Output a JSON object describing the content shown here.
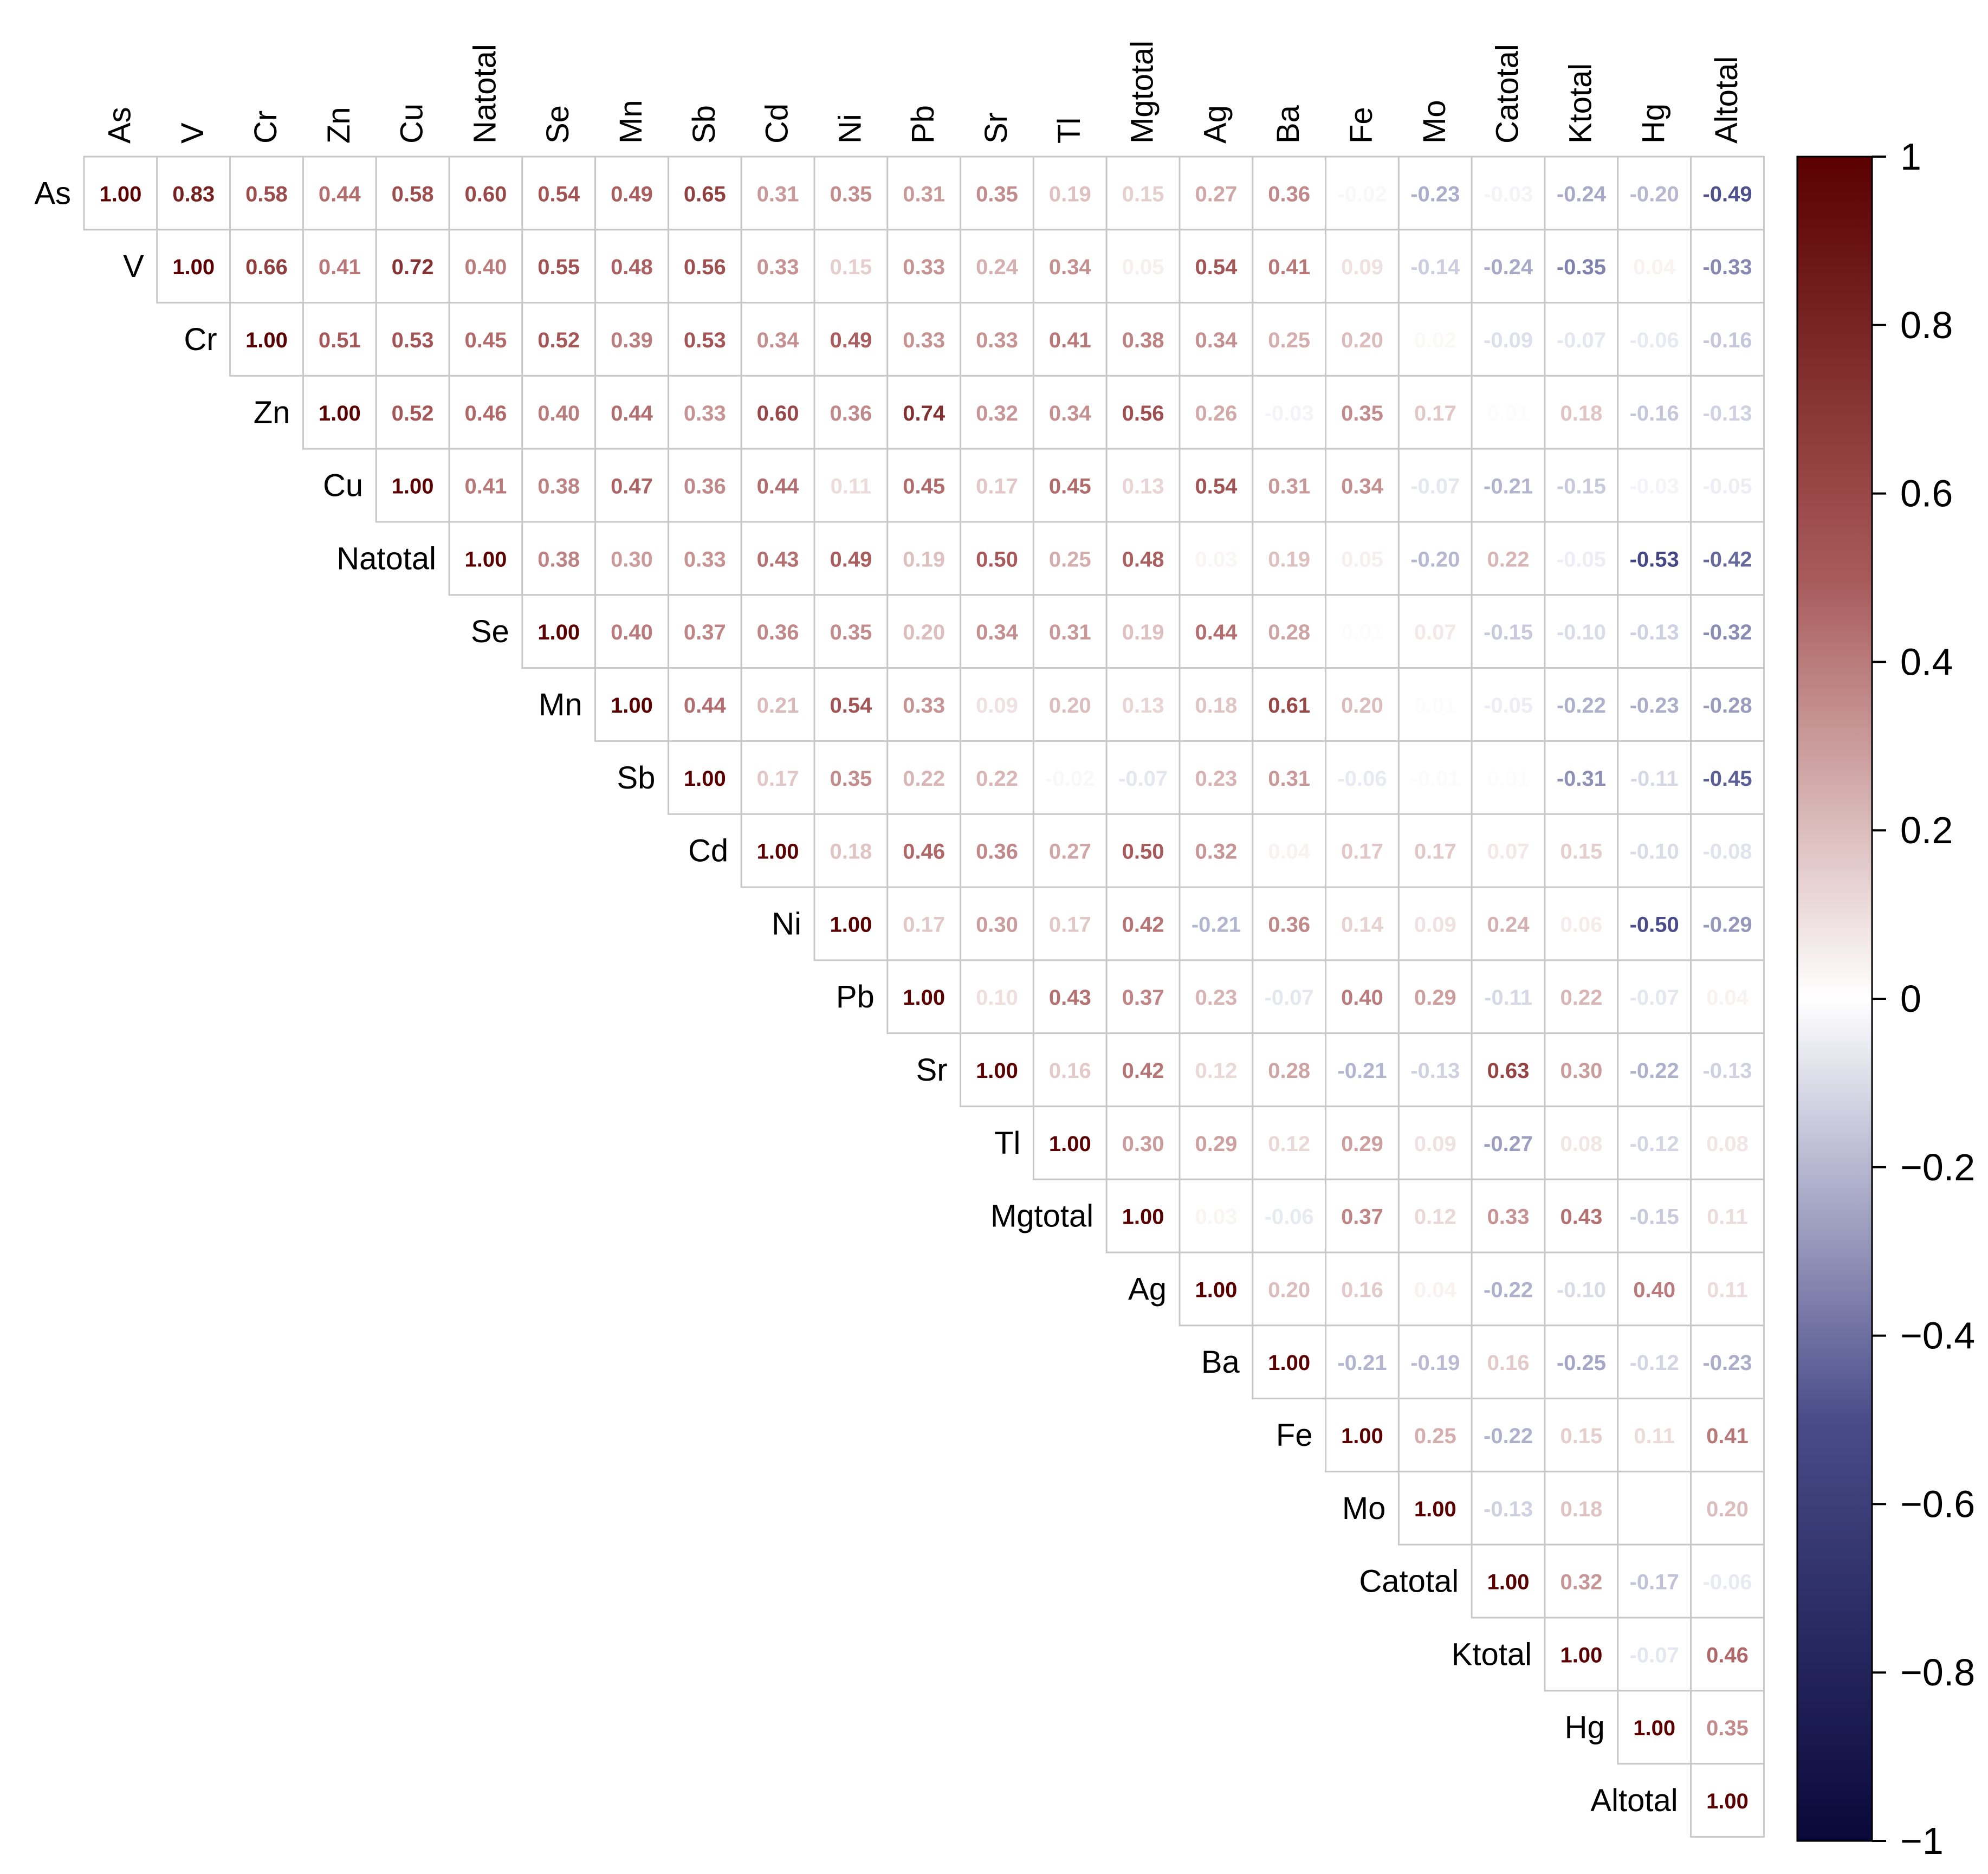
{
  "chart_data": {
    "type": "heatmap",
    "variables": [
      "As",
      "V",
      "Cr",
      "Zn",
      "Cu",
      "Natotal",
      "Se",
      "Mn",
      "Sb",
      "Cd",
      "Ni",
      "Pb",
      "Sr",
      "Tl",
      "Mgtotal",
      "Ag",
      "Ba",
      "Fe",
      "Mo",
      "Catotal",
      "Ktotal",
      "Hg",
      "Altotal"
    ],
    "matrix_upper": [
      [
        "1.00",
        "0.83",
        "0.58",
        "0.44",
        "0.58",
        "0.60",
        "0.54",
        "0.49",
        "0.65",
        "0.31",
        "0.35",
        "0.31",
        "0.35",
        "0.19",
        "0.15",
        "0.27",
        "0.36",
        "-0.02",
        "-0.23",
        "-0.03",
        "-0.24",
        "-0.20",
        "-0.49"
      ],
      [
        "1.00",
        "0.66",
        "0.41",
        "0.72",
        "0.40",
        "0.55",
        "0.48",
        "0.56",
        "0.33",
        "0.15",
        "0.33",
        "0.24",
        "0.34",
        "0.05",
        "0.54",
        "0.41",
        "0.09",
        "-0.14",
        "-0.24",
        "-0.35",
        "0.04",
        "-0.33"
      ],
      [
        "1.00",
        "0.51",
        "0.53",
        "0.45",
        "0.52",
        "0.39",
        "0.53",
        "0.34",
        "0.49",
        "0.33",
        "0.33",
        "0.41",
        "0.38",
        "0.34",
        "0.25",
        "0.20",
        "0.02",
        "-0.09",
        "-0.07",
        "-0.06",
        "-0.16"
      ],
      [
        "1.00",
        "0.52",
        "0.46",
        "0.40",
        "0.44",
        "0.33",
        "0.60",
        "0.36",
        "0.74",
        "0.32",
        "0.34",
        "0.56",
        "0.26",
        "-0.03",
        "0.35",
        "0.17",
        "0.01",
        "0.18",
        "-0.16",
        "-0.13"
      ],
      [
        "1.00",
        "0.41",
        "0.38",
        "0.47",
        "0.36",
        "0.44",
        "0.11",
        "0.45",
        "0.17",
        "0.45",
        "0.13",
        "0.54",
        "0.31",
        "0.34",
        "-0.07",
        "-0.21",
        "-0.15",
        "-0.03",
        "-0.05"
      ],
      [
        "1.00",
        "0.38",
        "0.30",
        "0.33",
        "0.43",
        "0.49",
        "0.19",
        "0.50",
        "0.25",
        "0.48",
        "0.03",
        "0.19",
        "0.05",
        "-0.20",
        "0.22",
        "-0.05",
        "-0.53",
        "-0.42"
      ],
      [
        "1.00",
        "0.40",
        "0.37",
        "0.36",
        "0.35",
        "0.20",
        "0.34",
        "0.31",
        "0.19",
        "0.44",
        "0.28",
        "0.01",
        "0.07",
        "-0.15",
        "-0.10",
        "-0.13",
        "-0.32"
      ],
      [
        "1.00",
        "0.44",
        "0.21",
        "0.54",
        "0.33",
        "0.09",
        "0.20",
        "0.13",
        "0.18",
        "0.61",
        "0.20",
        "0.01",
        "-0.05",
        "-0.22",
        "-0.23",
        "-0.28"
      ],
      [
        "1.00",
        "0.17",
        "0.35",
        "0.22",
        "0.22",
        "-0.02",
        "-0.07",
        "0.23",
        "0.31",
        "-0.06",
        "-0.01",
        "0.01",
        "-0.31",
        "-0.11",
        "-0.45"
      ],
      [
        "1.00",
        "0.18",
        "0.46",
        "0.36",
        "0.27",
        "0.50",
        "0.32",
        "0.04",
        "0.17",
        "0.17",
        "0.07",
        "0.15",
        "-0.10",
        "-0.08"
      ],
      [
        "1.00",
        "0.17",
        "0.30",
        "0.17",
        "0.42",
        "-0.21",
        "0.36",
        "0.14",
        "0.09",
        "0.24",
        "0.06",
        "-0.50",
        "-0.29"
      ],
      [
        "1.00",
        "0.10",
        "0.43",
        "0.37",
        "0.23",
        "-0.07",
        "0.40",
        "0.29",
        "-0.11",
        "0.22",
        "-0.07",
        "0.04"
      ],
      [
        "1.00",
        "0.16",
        "0.42",
        "0.12",
        "0.28",
        "-0.21",
        "-0.13",
        "0.63",
        "0.30",
        "-0.22",
        "-0.13"
      ],
      [
        "1.00",
        "0.30",
        "0.29",
        "0.12",
        "0.29",
        "0.09",
        "-0.27",
        "0.08",
        "-0.12",
        "0.08"
      ],
      [
        "1.00",
        "0.03",
        "-0.06",
        "0.37",
        "0.12",
        "0.33",
        "0.43",
        "-0.15",
        "0.11"
      ],
      [
        "1.00",
        "0.20",
        "0.16",
        "0.04",
        "-0.22",
        "-0.10",
        "0.40",
        "0.11"
      ],
      [
        "1.00",
        "-0.21",
        "-0.19",
        "0.16",
        "-0.25",
        "-0.12",
        "-0.23"
      ],
      [
        "1.00",
        "0.25",
        "-0.22",
        "0.15",
        "0.11",
        "0.41"
      ],
      [
        "1.00",
        "-0.13",
        "0.18",
        "0.00",
        "0.20"
      ],
      [
        "1.00",
        "0.32",
        "-0.17",
        "-0.06"
      ],
      [
        "1.00",
        "-0.07",
        "0.46"
      ],
      [
        "1.00",
        "0.35"
      ],
      [
        "1.00"
      ]
    ],
    "colorbar": {
      "ticks": [
        {
          "value": 1,
          "label": "1"
        },
        {
          "value": 0.8,
          "label": "0.8"
        },
        {
          "value": 0.6,
          "label": "0.6"
        },
        {
          "value": 0.4,
          "label": "0.4"
        },
        {
          "value": 0.2,
          "label": "0.2"
        },
        {
          "value": 0,
          "label": "0"
        },
        {
          "value": -0.2,
          "label": "−0.2"
        },
        {
          "value": -0.4,
          "label": "−0.4"
        },
        {
          "value": -0.6,
          "label": "−0.6"
        },
        {
          "value": -0.8,
          "label": "−0.8"
        },
        {
          "value": -1,
          "label": "−1"
        }
      ],
      "range": [
        -1,
        1
      ]
    },
    "colors": {
      "negative_end": "#08083a",
      "mid_negative": "#4a4c8a",
      "neutral": "#ffffff",
      "mid_positive": "#a85a5a",
      "positive_end": "#5a0000",
      "grid": "#c8c8c8"
    }
  }
}
